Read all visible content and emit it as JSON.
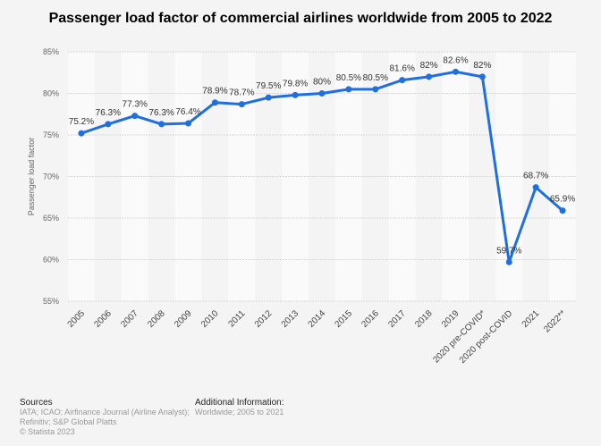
{
  "chart_data": {
    "type": "line",
    "title": "Passenger load factor of commercial airlines worldwide from 2005 to 2022",
    "ylabel": "Passenger load factor",
    "xlabel": "",
    "categories": [
      "2005",
      "2006",
      "2007",
      "2008",
      "2009",
      "2010",
      "2011",
      "2012",
      "2013",
      "2014",
      "2015",
      "2016",
      "2017",
      "2018",
      "2019",
      "2020 pre-COVID*",
      "2020 post-COVID",
      "2021",
      "2022**"
    ],
    "values": [
      75.2,
      76.3,
      77.3,
      76.3,
      76.4,
      78.9,
      78.7,
      79.5,
      79.8,
      80,
      80.5,
      80.5,
      81.6,
      82,
      82.6,
      82,
      59.7,
      68.7,
      65.9
    ],
    "labels": [
      "75.2%",
      "76.3%",
      "77.3%",
      "76.3%",
      "76.4%",
      "78.9%",
      "78.7%",
      "79.5%",
      "79.8%",
      "80%",
      "80.5%",
      "80.5%",
      "81.6%",
      "82%",
      "82.6%",
      "82%",
      "59.7%",
      "68.7%",
      "65.9%"
    ],
    "yticks": [
      "55%",
      "60%",
      "65%",
      "70%",
      "75%",
      "80%",
      "85%"
    ],
    "ylim": [
      55,
      85
    ],
    "grid": true,
    "color": "#1f6fde"
  },
  "footer": {
    "sources_title": "Sources",
    "sources": [
      "IATA; ICAO; Airfinance Journal (Airline Analyst);",
      "Refinitiv; S&P Global Platts",
      "© Statista 2023"
    ],
    "info_title": "Additional Information:",
    "info": "Worldwide; 2005 to 2021"
  }
}
